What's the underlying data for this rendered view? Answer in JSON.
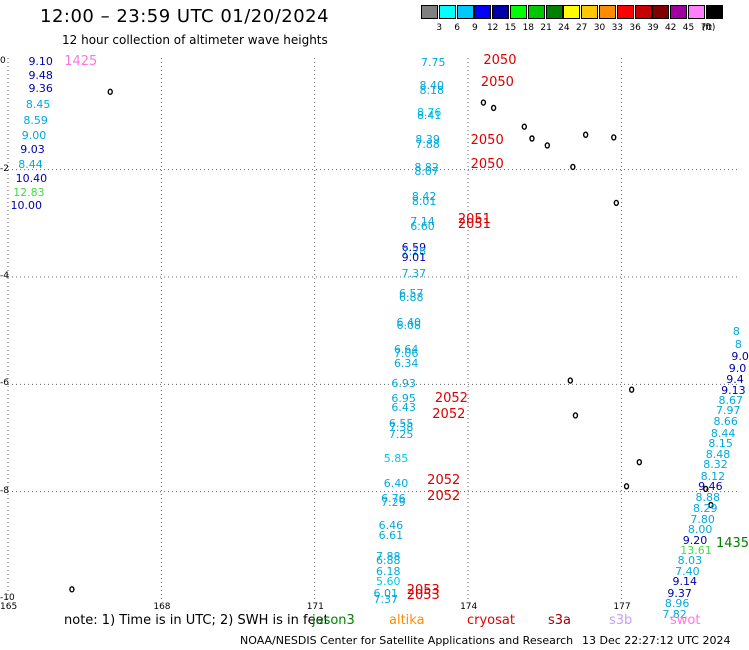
{
  "header": {
    "title": "12:00 – 23:59 UTC 01/20/2024",
    "subtitle": "12 hour collection of altimeter wave heights"
  },
  "colorbar": {
    "unit": "(ft)",
    "bins": [
      {
        "label": "",
        "color": "#808080"
      },
      {
        "label": "3",
        "color": "#00ffff"
      },
      {
        "label": "6",
        "color": "#00c8ff"
      },
      {
        "label": "9",
        "color": "#0000ff"
      },
      {
        "label": "12",
        "color": "#0000aa"
      },
      {
        "label": "15",
        "color": "#00ff00"
      },
      {
        "label": "18",
        "color": "#00c800"
      },
      {
        "label": "21",
        "color": "#008000"
      },
      {
        "label": "24",
        "color": "#ffff00"
      },
      {
        "label": "27",
        "color": "#ffc800"
      },
      {
        "label": "30",
        "color": "#ff8c00"
      },
      {
        "label": "33",
        "color": "#ff0000"
      },
      {
        "label": "36",
        "color": "#c80000"
      },
      {
        "label": "39",
        "color": "#800000"
      },
      {
        "label": "42",
        "color": "#a000a0"
      },
      {
        "label": "45",
        "color": "#ff80ff"
      },
      {
        "label": "70",
        "color": "#000000"
      }
    ]
  },
  "map": {
    "lon_range": [
      165,
      179.3
    ],
    "lat_range": [
      -10,
      0.08
    ],
    "lon_ticks": [
      {
        "lon": 165,
        "label": "165"
      },
      {
        "lon": 168,
        "label": "168"
      },
      {
        "lon": 171,
        "label": "171"
      },
      {
        "lon": 174,
        "label": "174"
      },
      {
        "lon": 177,
        "label": "177"
      }
    ],
    "lat_ticks": [
      {
        "lat": 0,
        "label": "0"
      },
      {
        "lat": -2,
        "label": "-2"
      },
      {
        "lat": -4,
        "label": "-4"
      },
      {
        "lat": -6,
        "label": "-6"
      },
      {
        "lat": -8,
        "label": "-8"
      },
      {
        "lat": -10,
        "label": "-10"
      }
    ]
  },
  "palette": {
    "light": "#00aadd",
    "cyan": "#00c8e8",
    "navy": "#0000aa",
    "green": "#44dd44",
    "pink": "#ff77dd",
    "red": "#dd0000",
    "darkgreen": "#008000"
  },
  "observations": [
    {
      "v": "9.10",
      "lon": 165.4,
      "lat": 0.02,
      "c": "navy"
    },
    {
      "v": "9.48",
      "lon": 165.4,
      "lat": -0.23,
      "c": "navy"
    },
    {
      "v": "9.36",
      "lon": 165.4,
      "lat": -0.47,
      "c": "navy"
    },
    {
      "v": "8.45",
      "lon": 165.35,
      "lat": -0.78,
      "c": "light"
    },
    {
      "v": "8.59",
      "lon": 165.3,
      "lat": -1.08,
      "c": "light"
    },
    {
      "v": "9.00",
      "lon": 165.27,
      "lat": -1.36,
      "c": "light"
    },
    {
      "v": "9.03",
      "lon": 165.24,
      "lat": -1.62,
      "c": "navy"
    },
    {
      "v": "8.44",
      "lon": 165.2,
      "lat": -1.89,
      "c": "light"
    },
    {
      "v": "10.40",
      "lon": 165.15,
      "lat": -2.15,
      "c": "navy"
    },
    {
      "v": "12.83",
      "lon": 165.1,
      "lat": -2.42,
      "c": "green"
    },
    {
      "v": "10.00",
      "lon": 165.05,
      "lat": -2.66,
      "c": "navy"
    },
    {
      "v": "7.75",
      "lon": 173.08,
      "lat": 0.0,
      "c": "light"
    },
    {
      "v": "8.40",
      "lon": 173.05,
      "lat": -0.42,
      "c": "light"
    },
    {
      "v": "8.18",
      "lon": 173.05,
      "lat": -0.52,
      "c": "light"
    },
    {
      "v": "8.76",
      "lon": 173.0,
      "lat": -0.92,
      "c": "cyan"
    },
    {
      "v": "8.41",
      "lon": 173.0,
      "lat": -0.99,
      "c": "light"
    },
    {
      "v": "8.39",
      "lon": 172.97,
      "lat": -1.43,
      "c": "light"
    },
    {
      "v": "7.88",
      "lon": 172.97,
      "lat": -1.53,
      "c": "light"
    },
    {
      "v": "8.82",
      "lon": 172.95,
      "lat": -1.96,
      "c": "light"
    },
    {
      "v": "8.07",
      "lon": 172.95,
      "lat": -2.03,
      "c": "light"
    },
    {
      "v": "8.42",
      "lon": 172.9,
      "lat": -2.5,
      "c": "light"
    },
    {
      "v": "8.01",
      "lon": 172.9,
      "lat": -2.58,
      "c": "light"
    },
    {
      "v": "7.14",
      "lon": 172.87,
      "lat": -2.96,
      "c": "light"
    },
    {
      "v": "6.60",
      "lon": 172.87,
      "lat": -3.05,
      "c": "light"
    },
    {
      "v": "6.59",
      "lon": 172.7,
      "lat": -3.44,
      "c": "navy"
    },
    {
      "v": "7.28",
      "lon": 172.7,
      "lat": -3.52,
      "c": "light"
    },
    {
      "v": "9.01",
      "lon": 172.7,
      "lat": -3.62,
      "c": "navy"
    },
    {
      "v": "7.37",
      "lon": 172.7,
      "lat": -3.93,
      "c": "light"
    },
    {
      "v": "6.57",
      "lon": 172.65,
      "lat": -4.3,
      "c": "light"
    },
    {
      "v": "6.88",
      "lon": 172.65,
      "lat": -4.38,
      "c": "light"
    },
    {
      "v": "6.40",
      "lon": 172.6,
      "lat": -4.83,
      "c": "light"
    },
    {
      "v": "6.08",
      "lon": 172.6,
      "lat": -4.9,
      "c": "light"
    },
    {
      "v": "6.64",
      "lon": 172.55,
      "lat": -5.35,
      "c": "light"
    },
    {
      "v": "7.06",
      "lon": 172.55,
      "lat": -5.42,
      "c": "light"
    },
    {
      "v": "6.34",
      "lon": 172.55,
      "lat": -5.6,
      "c": "light"
    },
    {
      "v": "6.93",
      "lon": 172.5,
      "lat": -5.97,
      "c": "light"
    },
    {
      "v": "6.95",
      "lon": 172.5,
      "lat": -6.25,
      "c": "light"
    },
    {
      "v": "6.43",
      "lon": 172.5,
      "lat": -6.43,
      "c": "light"
    },
    {
      "v": "6.55",
      "lon": 172.45,
      "lat": -6.72,
      "c": "light"
    },
    {
      "v": "7.38",
      "lon": 172.45,
      "lat": -6.8,
      "c": "light"
    },
    {
      "v": "7.25",
      "lon": 172.45,
      "lat": -6.92,
      "c": "light"
    },
    {
      "v": "5.85",
      "lon": 172.35,
      "lat": -7.37,
      "c": "cyan"
    },
    {
      "v": "6.40",
      "lon": 172.35,
      "lat": -7.83,
      "c": "light"
    },
    {
      "v": "6.76",
      "lon": 172.3,
      "lat": -8.12,
      "c": "light"
    },
    {
      "v": "7.29",
      "lon": 172.3,
      "lat": -8.2,
      "c": "light"
    },
    {
      "v": "6.46",
      "lon": 172.25,
      "lat": -8.62,
      "c": "light"
    },
    {
      "v": "6.61",
      "lon": 172.25,
      "lat": -8.8,
      "c": "light"
    },
    {
      "v": "7.88",
      "lon": 172.2,
      "lat": -9.19,
      "c": "light"
    },
    {
      "v": "6.88",
      "lon": 172.2,
      "lat": -9.27,
      "c": "light"
    },
    {
      "v": "6.18",
      "lon": 172.2,
      "lat": -9.47,
      "c": "light"
    },
    {
      "v": "5.60",
      "lon": 172.2,
      "lat": -9.66,
      "c": "cyan"
    },
    {
      "v": "6.01",
      "lon": 172.15,
      "lat": -9.89,
      "c": "light"
    },
    {
      "v": "7.37",
      "lon": 172.15,
      "lat": -10.0,
      "c": "light"
    },
    {
      "v": "8",
      "lon": 179.18,
      "lat": -5.0,
      "c": "light"
    },
    {
      "v": "8",
      "lon": 179.22,
      "lat": -5.25,
      "c": "light"
    },
    {
      "v": "9.0",
      "lon": 179.15,
      "lat": -5.48,
      "c": "navy"
    },
    {
      "v": "9.0",
      "lon": 179.1,
      "lat": -5.7,
      "c": "navy"
    },
    {
      "v": "9.4",
      "lon": 179.05,
      "lat": -5.91,
      "c": "navy"
    },
    {
      "v": "9.13",
      "lon": 178.95,
      "lat": -6.1,
      "c": "navy"
    },
    {
      "v": "8.67",
      "lon": 178.9,
      "lat": -6.3,
      "c": "light"
    },
    {
      "v": "7.97",
      "lon": 178.85,
      "lat": -6.48,
      "c": "light"
    },
    {
      "v": "8.66",
      "lon": 178.8,
      "lat": -6.68,
      "c": "light"
    },
    {
      "v": "8.44",
      "lon": 178.75,
      "lat": -6.9,
      "c": "light"
    },
    {
      "v": "8.15",
      "lon": 178.7,
      "lat": -7.09,
      "c": "light"
    },
    {
      "v": "8.48",
      "lon": 178.65,
      "lat": -7.29,
      "c": "light"
    },
    {
      "v": "8.32",
      "lon": 178.6,
      "lat": -7.49,
      "c": "light"
    },
    {
      "v": "8.12",
      "lon": 178.55,
      "lat": -7.7,
      "c": "light"
    },
    {
      "v": "9.46",
      "lon": 178.5,
      "lat": -7.9,
      "c": "navy"
    },
    {
      "v": "8.88",
      "lon": 178.45,
      "lat": -8.1,
      "c": "light"
    },
    {
      "v": "8.29",
      "lon": 178.4,
      "lat": -8.31,
      "c": "light"
    },
    {
      "v": "7.80",
      "lon": 178.35,
      "lat": -8.51,
      "c": "light"
    },
    {
      "v": "8.00",
      "lon": 178.3,
      "lat": -8.7,
      "c": "light"
    },
    {
      "v": "9.20",
      "lon": 178.2,
      "lat": -8.9,
      "c": "navy"
    },
    {
      "v": "13.61",
      "lon": 178.15,
      "lat": -9.08,
      "c": "green"
    },
    {
      "v": "8.03",
      "lon": 178.1,
      "lat": -9.27,
      "c": "light"
    },
    {
      "v": "7.40",
      "lon": 178.05,
      "lat": -9.47,
      "c": "light"
    },
    {
      "v": "9.14",
      "lon": 178.0,
      "lat": -9.67,
      "c": "navy"
    },
    {
      "v": "9.37",
      "lon": 177.9,
      "lat": -9.89,
      "c": "navy"
    },
    {
      "v": "8.96",
      "lon": 177.85,
      "lat": -10.08,
      "c": "light"
    },
    {
      "v": "7.82",
      "lon": 177.8,
      "lat": -10.28,
      "c": "light"
    }
  ],
  "time_marks": [
    {
      "t": "1425",
      "lon": 166.1,
      "lat": 0.02,
      "c": "pink"
    },
    {
      "t": "2050",
      "lon": 174.3,
      "lat": 0.05,
      "c": "red"
    },
    {
      "t": "2050",
      "lon": 174.25,
      "lat": -0.37,
      "c": "red"
    },
    {
      "t": "2050",
      "lon": 174.05,
      "lat": -1.44,
      "c": "red"
    },
    {
      "t": "2050",
      "lon": 174.05,
      "lat": -1.9,
      "c": "red"
    },
    {
      "t": "2051",
      "lon": 173.8,
      "lat": -2.92,
      "c": "red"
    },
    {
      "t": "2051",
      "lon": 173.8,
      "lat": -3.01,
      "c": "red"
    },
    {
      "t": "2052",
      "lon": 173.35,
      "lat": -6.26,
      "c": "red"
    },
    {
      "t": "2052",
      "lon": 173.3,
      "lat": -6.56,
      "c": "red"
    },
    {
      "t": "2052",
      "lon": 173.2,
      "lat": -7.79,
      "c": "red"
    },
    {
      "t": "2052",
      "lon": 173.2,
      "lat": -8.08,
      "c": "red"
    },
    {
      "t": "2053",
      "lon": 172.8,
      "lat": -9.84,
      "c": "red"
    },
    {
      "t": "2053",
      "lon": 172.8,
      "lat": -9.92,
      "c": "red"
    },
    {
      "t": "1435",
      "lon": 178.85,
      "lat": -8.95,
      "c": "darkgreen"
    }
  ],
  "islands": [
    {
      "lon": 167.0,
      "lat": -0.55
    },
    {
      "lon": 174.3,
      "lat": -0.75
    },
    {
      "lon": 174.5,
      "lat": -0.85
    },
    {
      "lon": 175.1,
      "lat": -1.2
    },
    {
      "lon": 175.25,
      "lat": -1.42
    },
    {
      "lon": 175.55,
      "lat": -1.55
    },
    {
      "lon": 176.3,
      "lat": -1.35
    },
    {
      "lon": 176.85,
      "lat": -1.4
    },
    {
      "lon": 176.05,
      "lat": -1.95
    },
    {
      "lon": 176.9,
      "lat": -2.62
    },
    {
      "lon": 176.0,
      "lat": -5.93
    },
    {
      "lon": 176.1,
      "lat": -6.58
    },
    {
      "lon": 177.2,
      "lat": -6.1
    },
    {
      "lon": 177.35,
      "lat": -7.45
    },
    {
      "lon": 177.1,
      "lat": -7.9
    },
    {
      "lon": 178.65,
      "lat": -7.95
    },
    {
      "lon": 178.75,
      "lat": -8.25
    },
    {
      "lon": 166.25,
      "lat": -9.82
    }
  ],
  "footer": {
    "note": "note:  1) Time is in UTC; 2) SWH is in feet",
    "legend": [
      {
        "name": "jason3",
        "color": "#008000"
      },
      {
        "name": "altika",
        "color": "#ff8c00"
      },
      {
        "name": "cryosat",
        "color": "#dd0000"
      },
      {
        "name": "s3a",
        "color": "#a00000"
      },
      {
        "name": "s3b",
        "color": "#c8a0f0"
      },
      {
        "name": "swot",
        "color": "#ff77dd"
      }
    ],
    "credit": "NOAA/NESDIS Center for Satellite Applications and Research",
    "stamp": "13 Dec 22:27:12 UTC 2024"
  }
}
